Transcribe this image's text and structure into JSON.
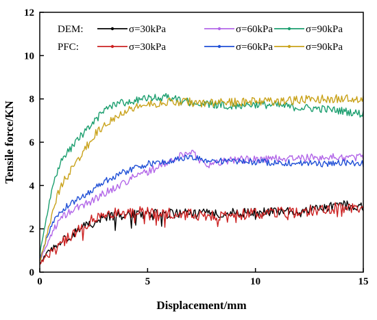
{
  "chart_data": {
    "type": "line",
    "xlabel": "Displacement/mm",
    "ylabel": "Tensile force/KN",
    "xlim": [
      0,
      15
    ],
    "ylim": [
      0,
      12
    ],
    "x_ticks": [
      "0",
      "5",
      "10",
      "15"
    ],
    "y_ticks": [
      "0",
      "2",
      "4",
      "6",
      "8",
      "10",
      "12"
    ],
    "grid": false,
    "legend_placement": "top",
    "legend": {
      "row_labels": [
        "DEM:",
        "PFC:"
      ],
      "entries": [
        {
          "group": "DEM",
          "label": "σ=30kPa",
          "color": "#000000"
        },
        {
          "group": "DEM",
          "label": "σ=60kPa",
          "color": "#b266e8"
        },
        {
          "group": "DEM",
          "label": "σ=90kPa",
          "color": "#1a9e6e"
        },
        {
          "group": "PFC",
          "label": "σ=30kPa",
          "color": "#cc2222"
        },
        {
          "group": "PFC",
          "label": "σ=60kPa",
          "color": "#1f4fd6"
        },
        {
          "group": "PFC",
          "label": "σ=90kPa",
          "color": "#c9a21a"
        }
      ]
    },
    "series": [
      {
        "key": "dem30",
        "color": "#000000",
        "x": [
          0,
          0.3,
          0.6,
          1,
          1.5,
          2,
          2.5,
          3,
          3.5,
          4,
          5,
          6,
          7,
          8,
          9,
          10,
          11,
          12,
          13,
          14,
          15
        ],
        "y": [
          0.4,
          0.8,
          1.1,
          1.4,
          1.75,
          2.05,
          2.3,
          2.5,
          2.6,
          2.65,
          2.7,
          2.7,
          2.7,
          2.7,
          2.75,
          2.75,
          2.8,
          2.85,
          2.95,
          3.1,
          3.0
        ]
      },
      {
        "key": "pfc30",
        "color": "#cc2222",
        "x": [
          0,
          0.3,
          0.6,
          1,
          1.5,
          2,
          2.5,
          3,
          3.5,
          4,
          5,
          6,
          7,
          8,
          9,
          10,
          11,
          12,
          13,
          14,
          15
        ],
        "y": [
          0.4,
          0.75,
          1.0,
          1.3,
          1.75,
          2.1,
          2.45,
          2.65,
          2.75,
          2.8,
          2.75,
          2.7,
          2.65,
          2.6,
          2.65,
          2.7,
          2.75,
          2.85,
          2.9,
          3.0,
          3.0
        ]
      },
      {
        "key": "dem60",
        "color": "#b266e8",
        "x": [
          0,
          0.3,
          0.6,
          1,
          1.5,
          2,
          2.5,
          3,
          3.5,
          4,
          4.5,
          5,
          5.5,
          6,
          6.5,
          7,
          7.5,
          8,
          8.5,
          9,
          10,
          11,
          12,
          13,
          14,
          15
        ],
        "y": [
          0.5,
          1.2,
          1.9,
          2.5,
          2.85,
          3.1,
          3.35,
          3.65,
          3.9,
          4.2,
          4.45,
          4.65,
          4.85,
          5.1,
          5.35,
          5.6,
          5.1,
          4.95,
          5.15,
          5.2,
          5.2,
          5.25,
          5.25,
          5.3,
          5.3,
          5.3
        ]
      },
      {
        "key": "pfc60",
        "color": "#1f4fd6",
        "x": [
          0,
          0.3,
          0.6,
          1,
          1.5,
          2,
          2.5,
          3,
          3.5,
          4,
          4.5,
          5,
          5.5,
          6,
          6.5,
          7,
          7.5,
          8,
          9,
          10,
          11,
          12,
          13,
          14,
          15
        ],
        "y": [
          0.6,
          1.5,
          2.3,
          2.85,
          3.2,
          3.5,
          3.85,
          4.2,
          4.45,
          4.65,
          4.85,
          5.0,
          5.05,
          5.1,
          5.25,
          5.3,
          5.2,
          5.15,
          5.1,
          5.1,
          5.05,
          5.05,
          5.0,
          5.05,
          5.0
        ]
      },
      {
        "key": "dem90",
        "color": "#1a9e6e",
        "x": [
          0,
          0.2,
          0.4,
          0.6,
          0.8,
          1,
          1.5,
          2,
          2.5,
          3,
          3.5,
          4,
          4.5,
          5,
          5.5,
          6,
          6.5,
          7,
          7.5,
          8,
          8.5,
          9,
          10,
          11,
          12,
          13,
          14,
          15
        ],
        "y": [
          0.8,
          2.0,
          3.0,
          3.9,
          4.6,
          5.1,
          5.8,
          6.4,
          6.9,
          7.5,
          7.8,
          7.85,
          7.95,
          8.0,
          8.05,
          8.1,
          7.9,
          7.85,
          7.75,
          7.75,
          7.7,
          7.7,
          7.75,
          7.7,
          7.6,
          7.55,
          7.45,
          7.3
        ]
      },
      {
        "key": "pfc90",
        "color": "#c9a21a",
        "x": [
          0,
          0.2,
          0.4,
          0.6,
          0.8,
          1,
          1.5,
          2,
          2.5,
          3,
          3.5,
          4,
          4.5,
          5,
          5.5,
          6,
          6.5,
          7,
          7.5,
          8,
          9,
          10,
          11,
          12,
          13,
          14,
          15
        ],
        "y": [
          0.5,
          1.2,
          2.0,
          2.8,
          3.5,
          4.0,
          4.8,
          5.5,
          6.3,
          6.8,
          7.2,
          7.5,
          7.65,
          7.75,
          7.8,
          7.85,
          7.85,
          7.85,
          7.8,
          7.8,
          7.85,
          7.9,
          7.9,
          7.95,
          8.0,
          8.0,
          8.0
        ]
      }
    ]
  }
}
